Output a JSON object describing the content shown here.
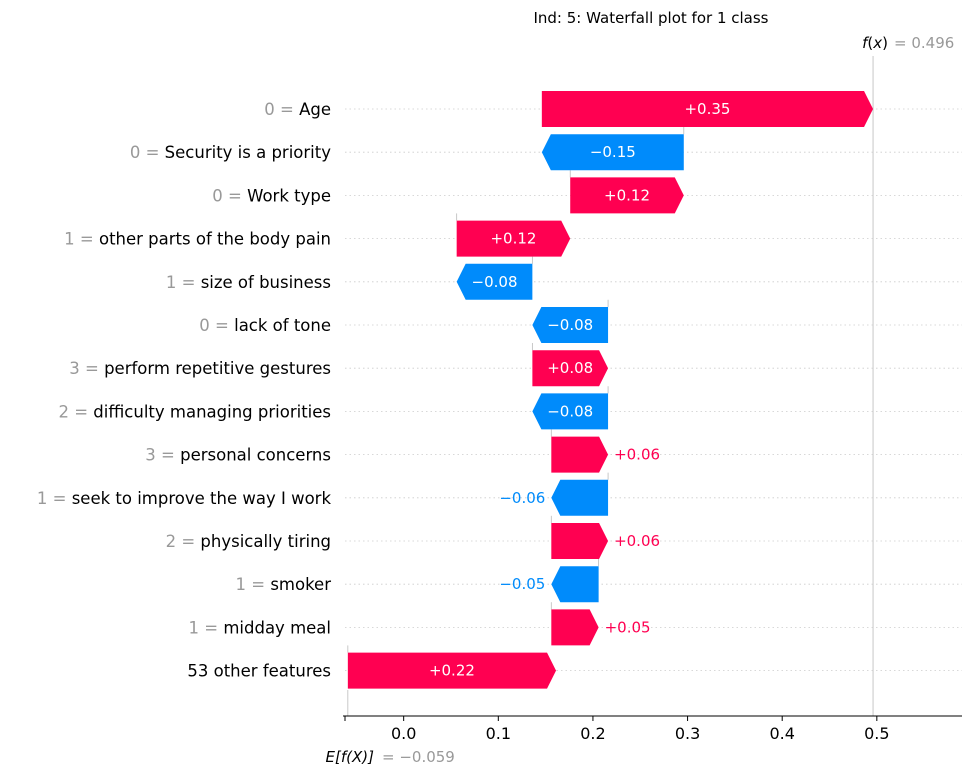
{
  "chart_data": {
    "type": "waterfall",
    "title": "Ind: 5: Waterfall plot for 1 class",
    "fx_label_fn": "f",
    "fx_label_arg": "x",
    "fx_value_text": "= 0.496",
    "fx_value": 0.496,
    "base_label": "E[f(X)]",
    "base_value_text": "= −0.059",
    "base_value": -0.059,
    "xlim": [
      -0.062,
      0.59
    ],
    "xticks": [
      {
        "value": 0.0,
        "label": "0.0"
      },
      {
        "value": 0.1,
        "label": "0.1"
      },
      {
        "value": 0.2,
        "label": "0.2"
      },
      {
        "value": 0.3,
        "label": "0.3"
      },
      {
        "value": 0.4,
        "label": "0.4"
      },
      {
        "value": 0.5,
        "label": "0.5"
      }
    ],
    "colors": {
      "positive": "#ff0051",
      "negative": "#008bfb",
      "value_gray": "#999999",
      "text": "#000000",
      "grid": "#cccccc"
    },
    "features": [
      {
        "value": "0",
        "name": "Age",
        "start": 0.146,
        "contribution": 0.35,
        "label": "+0.35"
      },
      {
        "value": "0",
        "name": "Security is a priority",
        "start": 0.296,
        "contribution": -0.15,
        "label": "−0.15"
      },
      {
        "value": "0",
        "name": "Work type",
        "start": 0.176,
        "contribution": 0.12,
        "label": "+0.12"
      },
      {
        "value": "1",
        "name": "other parts of the body pain",
        "start": 0.056,
        "contribution": 0.12,
        "label": "+0.12"
      },
      {
        "value": "1",
        "name": "size of business",
        "start": 0.136,
        "contribution": -0.08,
        "label": "−0.08"
      },
      {
        "value": "0",
        "name": "lack of tone",
        "start": 0.216,
        "contribution": -0.08,
        "label": "−0.08"
      },
      {
        "value": "3",
        "name": "perform repetitive gestures",
        "start": 0.136,
        "contribution": 0.08,
        "label": "+0.08"
      },
      {
        "value": "2",
        "name": "difficulty managing priorities",
        "start": 0.216,
        "contribution": -0.08,
        "label": "−0.08"
      },
      {
        "value": "3",
        "name": "personal concerns",
        "start": 0.156,
        "contribution": 0.06,
        "label": "+0.06"
      },
      {
        "value": "1",
        "name": "seek to improve the way I work",
        "start": 0.216,
        "contribution": -0.06,
        "label": "−0.06"
      },
      {
        "value": "2",
        "name": "physically tiring",
        "start": 0.156,
        "contribution": 0.06,
        "label": "+0.06"
      },
      {
        "value": "1",
        "name": "smoker",
        "start": 0.206,
        "contribution": -0.05,
        "label": "−0.05"
      },
      {
        "value": "1",
        "name": "midday meal",
        "start": 0.156,
        "contribution": 0.05,
        "label": "+0.05"
      },
      {
        "value": "",
        "name": "53 other features",
        "start": -0.059,
        "contribution": 0.22,
        "label": "+0.22"
      }
    ]
  }
}
